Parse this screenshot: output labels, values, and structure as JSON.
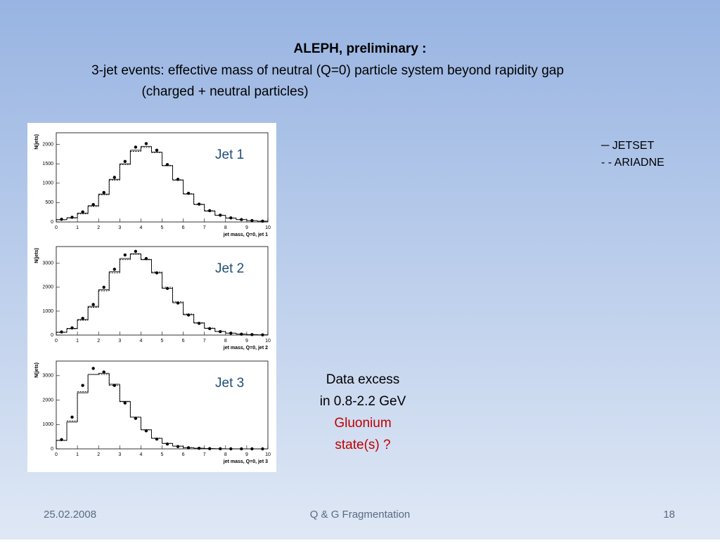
{
  "header": {
    "title": "ALEPH, preliminary :",
    "subtitle": "3-jet events: effective mass of neutral (Q=0) particle system beyond rapidity gap",
    "note": "(charged + neutral particles)"
  },
  "legend": [
    "─ JETSET",
    "- - ARIADNE"
  ],
  "annotation": [
    "Data excess",
    "in 0.8-2.2 GeV",
    "Gluonium",
    "state(s) ?"
  ],
  "footer": {
    "date": "25.02.2008",
    "title": "Q & G Fragmentation",
    "page": "18"
  },
  "chart_data": [
    {
      "type": "histogram",
      "annotation": "Jet 1",
      "ylabel": "N(jets)",
      "xlabel": "jet mass, Q=0, jet 1",
      "bins": [
        0,
        0.5,
        1,
        1.5,
        2,
        2.5,
        3,
        3.5,
        4,
        4.5,
        5,
        5.5,
        6,
        6.5,
        7,
        7.5,
        8,
        8.5,
        9,
        9.5,
        10
      ],
      "xlim": [
        0,
        10
      ],
      "xticks": [
        0,
        1,
        2,
        3,
        4,
        5,
        6,
        7,
        8,
        9,
        10
      ],
      "ylim": [
        0,
        2300
      ],
      "yticks": [
        0,
        500,
        1000,
        1500,
        2000
      ],
      "series": [
        {
          "style": "points",
          "color": "#000000",
          "values": [
            70,
            120,
            260,
            450,
            760,
            1150,
            1560,
            1930,
            2020,
            1850,
            1480,
            1100,
            740,
            460,
            290,
            175,
            105,
            62,
            36,
            22
          ]
        },
        {
          "style": "solid",
          "color": "#000000",
          "values": [
            60,
            110,
            230,
            420,
            720,
            1100,
            1500,
            1850,
            1950,
            1800,
            1450,
            1080,
            720,
            450,
            280,
            170,
            100,
            60,
            35,
            20
          ]
        },
        {
          "style": "dashed",
          "color": "#000000",
          "values": [
            55,
            100,
            210,
            400,
            700,
            1080,
            1480,
            1820,
            1920,
            1790,
            1460,
            1090,
            730,
            460,
            290,
            175,
            105,
            62,
            36,
            21
          ]
        }
      ]
    },
    {
      "type": "histogram",
      "annotation": "Jet 2",
      "ylabel": "N(jets)",
      "xlabel": "jet mass, Q=0, jet 2",
      "bins": [
        0,
        0.5,
        1,
        1.5,
        2,
        2.5,
        3,
        3.5,
        4,
        4.5,
        5,
        5.5,
        6,
        6.5,
        7,
        7.5,
        8,
        8.5,
        9,
        9.5,
        10
      ],
      "xlim": [
        0,
        10
      ],
      "xticks": [
        0,
        1,
        2,
        3,
        4,
        5,
        6,
        7,
        8,
        9,
        10
      ],
      "ylim": [
        0,
        3700
      ],
      "yticks": [
        0,
        1000,
        2000,
        3000
      ],
      "series": [
        {
          "style": "points",
          "color": "#000000",
          "values": [
            130,
            300,
            700,
            1280,
            2000,
            2750,
            3350,
            3500,
            3200,
            2600,
            1950,
            1340,
            840,
            490,
            270,
            145,
            78,
            38,
            19,
            9
          ]
        },
        {
          "style": "solid",
          "color": "#000000",
          "values": [
            120,
            280,
            650,
            1200,
            1900,
            2650,
            3200,
            3400,
            3150,
            2600,
            1950,
            1350,
            850,
            500,
            280,
            150,
            80,
            40,
            20,
            10
          ]
        },
        {
          "style": "dashed",
          "color": "#000000",
          "values": [
            110,
            260,
            620,
            1160,
            1850,
            2600,
            3150,
            3380,
            3170,
            2640,
            2000,
            1390,
            880,
            520,
            290,
            155,
            82,
            41,
            21,
            10
          ]
        }
      ]
    },
    {
      "type": "histogram",
      "annotation": "Jet 3",
      "ylabel": "N(jets)",
      "xlabel": "jet mass, Q=0, jet 3",
      "bins": [
        0,
        0.5,
        1,
        1.5,
        2,
        2.5,
        3,
        3.5,
        4,
        4.5,
        5,
        5.5,
        6,
        6.5,
        7,
        7.5,
        8,
        8.5,
        9,
        9.5,
        10
      ],
      "xlim": [
        0,
        10
      ],
      "xticks": [
        0,
        1,
        2,
        3,
        4,
        5,
        6,
        7,
        8,
        9,
        10
      ],
      "ylim": [
        0,
        3600
      ],
      "yticks": [
        0,
        1000,
        2000,
        3000
      ],
      "series": [
        {
          "style": "points",
          "color": "#000000",
          "values": [
            380,
            1300,
            2600,
            3300,
            3150,
            2600,
            1880,
            1250,
            740,
            400,
            200,
            95,
            45,
            22,
            10,
            5,
            3,
            2,
            1,
            0
          ]
        },
        {
          "style": "solid",
          "color": "#000000",
          "values": [
            350,
            1100,
            2300,
            3050,
            3100,
            2650,
            1950,
            1300,
            780,
            430,
            220,
            110,
            50,
            25,
            12,
            6,
            3,
            2,
            1,
            0
          ]
        },
        {
          "style": "dashed",
          "color": "#000000",
          "values": [
            340,
            1150,
            2350,
            3050,
            3050,
            2600,
            1930,
            1300,
            790,
            440,
            230,
            115,
            52,
            26,
            12,
            6,
            3,
            2,
            1,
            0
          ]
        }
      ]
    }
  ]
}
